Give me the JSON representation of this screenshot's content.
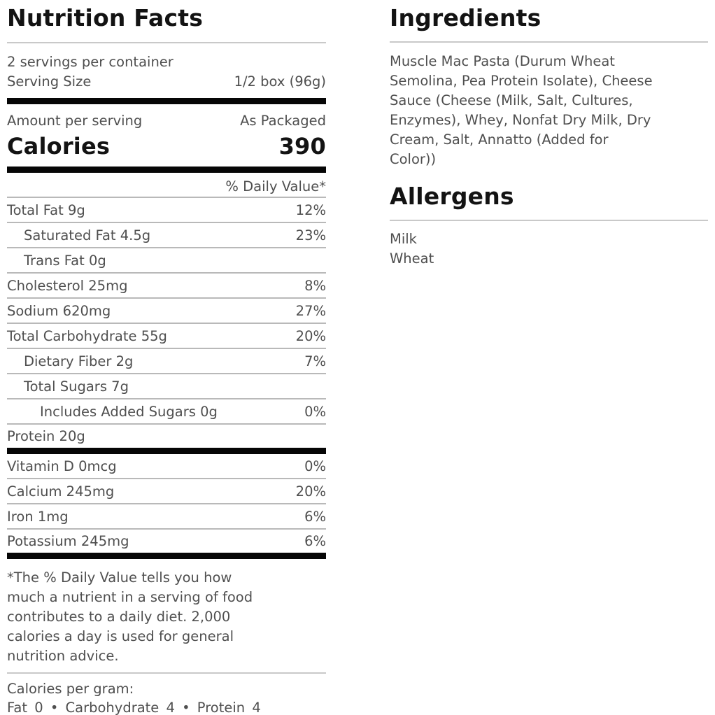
{
  "colors": {
    "heading_text": "#131313",
    "body_text": "#4f4f4f",
    "thick_bar": "#060606",
    "row_line": "#b9b9b9",
    "title_divider": "#c9c9c9",
    "background": "#ffffff"
  },
  "nutrition": {
    "title": "Nutrition Facts",
    "servings_per_container": "2 servings per container",
    "serving_size_label": "Serving Size",
    "serving_size_value": "1/2 box (96g)",
    "amount_per_serving_label": "Amount per serving",
    "amount_per_serving_value": "As Packaged",
    "calories_label": "Calories",
    "calories_value": "390",
    "daily_value_header": "% Daily Value*",
    "rows": [
      {
        "label": "Total Fat 9g",
        "value": "12%"
      },
      {
        "label": "Saturated Fat 4.5g",
        "value": "23%"
      },
      {
        "label": "Trans Fat 0g",
        "value": ""
      },
      {
        "label": "Cholesterol 25mg",
        "value": "8%"
      },
      {
        "label": "Sodium 620mg",
        "value": "27%"
      },
      {
        "label": "Total Carbohydrate 55g",
        "value": "20%"
      },
      {
        "label": "Dietary Fiber 2g",
        "value": "7%"
      },
      {
        "label": "Total Sugars 7g",
        "value": ""
      },
      {
        "label": "Includes Added Sugars 0g",
        "value": "0%"
      },
      {
        "label": "Protein 20g",
        "value": ""
      }
    ],
    "vitamin_rows": [
      {
        "label": "Vitamin D 0mcg",
        "value": "0%"
      },
      {
        "label": "Calcium 245mg",
        "value": "20%"
      },
      {
        "label": "Iron 1mg",
        "value": "6%"
      },
      {
        "label": "Potassium 245mg",
        "value": "6%"
      }
    ],
    "footnote": "*The % Daily Value tells you how much a nutrient in a serving of food contributes to a daily diet. 2,000 calories a day is used for general nutrition advice.",
    "footnote_lines": [
      "*The % Daily Value tells you how",
      "much a nutrient in a serving of food",
      "contributes to a daily diet. 2,000",
      "calories a day is used for general",
      "nutrition advice."
    ],
    "calories_per_gram_label": "Calories per gram:",
    "calories_per_gram_values": "Fat 0 • Carbohydrate 4 • Protein 4"
  },
  "ingredients": {
    "title": "Ingredients",
    "text": "Muscle Mac Pasta (Durum Wheat Semolina, Pea Protein Isolate), Cheese Sauce (Cheese (Milk, Salt, Cultures, Enzymes), Whey, Nonfat Dry Milk, Dry Cream, Salt, Annatto (Added for Color))",
    "lines": [
      "Muscle Mac Pasta (Durum Wheat",
      "Semolina, Pea Protein Isolate), Cheese",
      "Sauce (Cheese (Milk, Salt, Cultures,",
      "Enzymes), Whey, Nonfat Dry Milk, Dry",
      "Cream, Salt, Annatto (Added for",
      "Color))"
    ]
  },
  "allergens": {
    "title": "Allergens",
    "items": [
      "Milk",
      "Wheat"
    ]
  }
}
